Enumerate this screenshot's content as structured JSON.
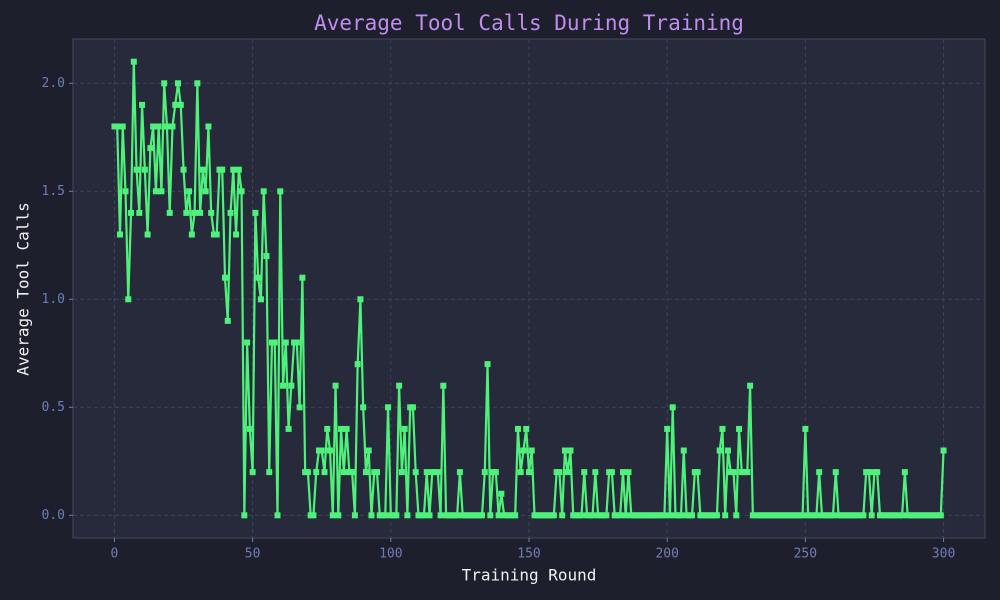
{
  "chart_data": {
    "type": "line",
    "title": "Average Tool Calls During Training",
    "xlabel": "Training Round",
    "ylabel": "Average Tool Calls",
    "xlim": [
      -15,
      315
    ],
    "ylim": [
      -0.105,
      2.205
    ],
    "xticks": [
      0,
      50,
      100,
      150,
      200,
      250,
      300
    ],
    "yticks": [
      {
        "value": 0,
        "label": "0.0"
      },
      {
        "value": 0.5,
        "label": "0.5"
      },
      {
        "value": 1,
        "label": "1.0"
      },
      {
        "value": 1.5,
        "label": "1.5"
      },
      {
        "value": 2,
        "label": "2.0"
      }
    ],
    "grid": true,
    "x": [
      0,
      1,
      2,
      3,
      4,
      5,
      6,
      7,
      8,
      9,
      10,
      11,
      12,
      13,
      14,
      15,
      16,
      17,
      18,
      19,
      20,
      21,
      22,
      23,
      24,
      25,
      26,
      27,
      28,
      29,
      30,
      31,
      32,
      33,
      34,
      35,
      36,
      37,
      38,
      39,
      40,
      41,
      42,
      43,
      44,
      45,
      46,
      47,
      48,
      49,
      50,
      51,
      52,
      53,
      54,
      55,
      56,
      57,
      58,
      59,
      60,
      61,
      62,
      63,
      64,
      65,
      66,
      67,
      68,
      69,
      70,
      71,
      72,
      73,
      74,
      75,
      76,
      77,
      78,
      79,
      80,
      81,
      82,
      83,
      84,
      85,
      86,
      87,
      88,
      89,
      90,
      91,
      92,
      93,
      94,
      95,
      96,
      97,
      98,
      99,
      100,
      101,
      102,
      103,
      104,
      105,
      106,
      107,
      108,
      109,
      110,
      111,
      112,
      113,
      114,
      115,
      116,
      117,
      118,
      119,
      120,
      121,
      122,
      123,
      124,
      125,
      126,
      127,
      128,
      129,
      130,
      131,
      132,
      133,
      134,
      135,
      136,
      137,
      138,
      139,
      140,
      141,
      142,
      143,
      144,
      145,
      146,
      147,
      148,
      149,
      150,
      151,
      152,
      153,
      154,
      155,
      156,
      157,
      158,
      159,
      160,
      161,
      162,
      163,
      164,
      165,
      166,
      167,
      168,
      169,
      170,
      171,
      172,
      173,
      174,
      175,
      176,
      177,
      178,
      179,
      180,
      181,
      182,
      183,
      184,
      185,
      186,
      187,
      188,
      189,
      190,
      191,
      192,
      193,
      194,
      195,
      196,
      197,
      198,
      199,
      200,
      201,
      202,
      203,
      204,
      205,
      206,
      207,
      208,
      209,
      210,
      211,
      212,
      213,
      214,
      215,
      216,
      217,
      218,
      219,
      220,
      221,
      222,
      223,
      224,
      225,
      226,
      227,
      228,
      229,
      230,
      231,
      232,
      233,
      234,
      235,
      236,
      237,
      238,
      239,
      240,
      241,
      242,
      243,
      244,
      245,
      246,
      247,
      248,
      249,
      250,
      251,
      252,
      253,
      254,
      255,
      256,
      257,
      258,
      259,
      260,
      261,
      262,
      263,
      264,
      265,
      266,
      267,
      268,
      269,
      270,
      271,
      272,
      273,
      274,
      275,
      276,
      277,
      278,
      279,
      280,
      281,
      282,
      283,
      284,
      285,
      286,
      287,
      288,
      289,
      290,
      291,
      292,
      293,
      294,
      295,
      296,
      297,
      298,
      299,
      300
    ],
    "series": [
      {
        "color": "#4ef27a",
        "values": [
          1.8,
          1.8,
          1.3,
          1.8,
          1.5,
          1.0,
          1.4,
          2.1,
          1.6,
          1.4,
          1.9,
          1.6,
          1.3,
          1.7,
          1.8,
          1.5,
          1.8,
          1.5,
          2.0,
          1.8,
          1.4,
          1.8,
          1.9,
          2.0,
          1.9,
          1.6,
          1.4,
          1.5,
          1.3,
          1.4,
          2.0,
          1.4,
          1.6,
          1.5,
          1.8,
          1.4,
          1.3,
          1.3,
          1.6,
          1.6,
          1.1,
          0.9,
          1.4,
          1.6,
          1.3,
          1.6,
          1.5,
          0.0,
          0.8,
          0.4,
          0.2,
          1.4,
          1.1,
          1.0,
          1.5,
          1.2,
          0.2,
          0.8,
          0.8,
          0.0,
          1.5,
          0.6,
          0.8,
          0.4,
          0.6,
          0.8,
          0.8,
          0.5,
          1.1,
          0.2,
          0.2,
          0.0,
          0.0,
          0.2,
          0.3,
          0.3,
          0.2,
          0.4,
          0.3,
          0.0,
          0.6,
          0.0,
          0.4,
          0.2,
          0.4,
          0.2,
          0.2,
          0.0,
          0.7,
          1.0,
          0.5,
          0.2,
          0.3,
          0.0,
          0.2,
          0.2,
          0.0,
          0.0,
          0.0,
          0.5,
          0,
          0,
          0,
          0.6,
          0.2,
          0.4,
          0,
          0.5,
          0.5,
          0.2,
          0,
          0,
          0,
          0.2,
          0,
          0.2,
          0.2,
          0.2,
          0,
          0.6,
          0,
          0,
          0,
          0,
          0,
          0.2,
          0,
          0,
          0,
          0,
          0,
          0,
          0,
          0,
          0.2,
          0.7,
          0,
          0.2,
          0.2,
          0,
          0.1,
          0,
          0,
          0,
          0,
          0,
          0.4,
          0.2,
          0.3,
          0.4,
          0.2,
          0.3,
          0,
          0,
          0,
          0,
          0,
          0,
          0,
          0,
          0.2,
          0.2,
          0,
          0.3,
          0.2,
          0.3,
          0,
          0,
          0,
          0,
          0.2,
          0,
          0,
          0,
          0.2,
          0,
          0,
          0,
          0,
          0.2,
          0.2,
          0,
          0,
          0,
          0.2,
          0,
          0.2,
          0,
          0,
          0,
          0,
          0,
          0,
          0,
          0,
          0,
          0,
          0,
          0,
          0,
          0.4,
          0,
          0.5,
          0,
          0,
          0,
          0.3,
          0,
          0,
          0,
          0.2,
          0.2,
          0,
          0,
          0,
          0,
          0,
          0,
          0,
          0.3,
          0.4,
          0,
          0.3,
          0.2,
          0.2,
          0,
          0.4,
          0.2,
          0.2,
          0.2,
          0.6,
          0,
          0,
          0,
          0,
          0,
          0,
          0,
          0,
          0,
          0,
          0,
          0,
          0,
          0,
          0,
          0,
          0,
          0,
          0,
          0.4,
          0,
          0,
          0,
          0,
          0.2,
          0,
          0,
          0,
          0,
          0,
          0.2,
          0,
          0,
          0,
          0,
          0,
          0,
          0,
          0,
          0,
          0,
          0.2,
          0.2,
          0,
          0.2,
          0.2,
          0,
          0,
          0,
          0,
          0,
          0,
          0,
          0,
          0,
          0.2,
          0,
          0,
          0,
          0,
          0,
          0,
          0,
          0,
          0,
          0,
          0,
          0,
          0,
          0.3
        ]
      }
    ]
  }
}
